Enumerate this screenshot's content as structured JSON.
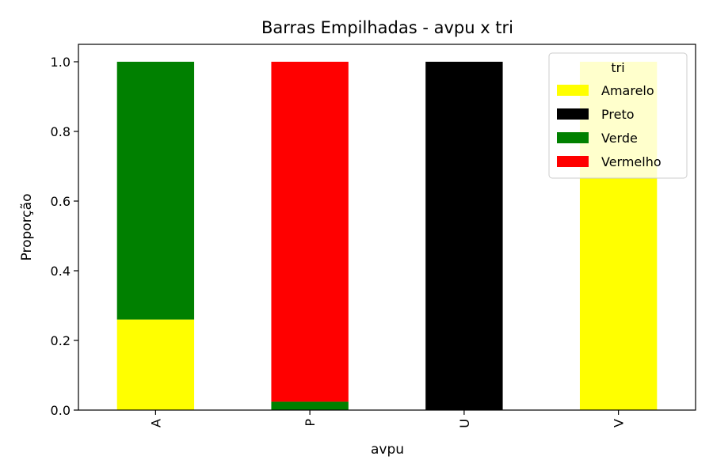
{
  "chart_data": {
    "type": "bar",
    "stacked": true,
    "title": "Barras Empilhadas - avpu x tri",
    "xlabel": "avpu",
    "ylabel": "Proporção",
    "categories": [
      "A",
      "P",
      "U",
      "V"
    ],
    "ylim": [
      0,
      1.0
    ],
    "yticks": [
      0.0,
      0.2,
      0.4,
      0.6,
      0.8,
      1.0
    ],
    "ytick_labels": [
      "0.0",
      "0.2",
      "0.4",
      "0.6",
      "0.8",
      "1.0"
    ],
    "grid": false,
    "legend": {
      "title": "tri",
      "position": "top-right"
    },
    "series": [
      {
        "name": "Amarelo",
        "color": "#ffff00",
        "values": [
          0.26,
          0.0,
          0.0,
          1.0
        ]
      },
      {
        "name": "Preto",
        "color": "#000000",
        "values": [
          0.0,
          0.0,
          1.0,
          0.0
        ]
      },
      {
        "name": "Verde",
        "color": "#008000",
        "values": [
          0.74,
          0.024,
          0.0,
          0.0
        ]
      },
      {
        "name": "Vermelho",
        "color": "#ff0000",
        "values": [
          0.0,
          0.976,
          0.0,
          0.0
        ]
      }
    ]
  }
}
